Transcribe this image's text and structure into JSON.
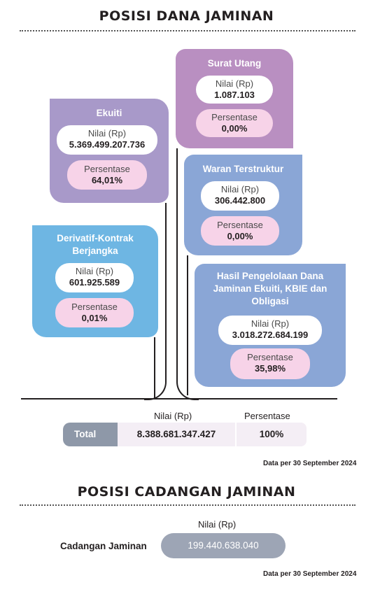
{
  "dana": {
    "title": "POSISI DANA JAMINAN",
    "cards": {
      "ekuiti": {
        "title": "Ekuiti",
        "nilai_label": "Nilai (Rp)",
        "nilai": "5.369.499.207.736",
        "persen_label": "Persentase",
        "persen": "64,01%"
      },
      "surat_utang": {
        "title": "Surat Utang",
        "nilai_label": "Nilai (Rp)",
        "nilai": "1.087.103",
        "persen_label": "Persentase",
        "persen": "0,00%"
      },
      "waran": {
        "title": "Waran Terstruktur",
        "nilai_label": "Nilai (Rp)",
        "nilai": "306.442.800",
        "persen_label": "Persentase",
        "persen": "0,00%"
      },
      "derivatif": {
        "title_line1": "Derivatif-Kontrak",
        "title_line2": "Berjangka",
        "nilai_label": "Nilai (Rp)",
        "nilai": "601.925.589",
        "persen_label": "Persentase",
        "persen": "0,01%"
      },
      "hasil": {
        "title_line1": "Hasil Pengelolaan Dana",
        "title_line2": "Jaminan Ekuiti, KBIE dan",
        "title_line3": "Obligasi",
        "nilai_label": "Nilai (Rp)",
        "nilai": "3.018.272.684.199",
        "persen_label": "Persentase",
        "persen": "35,98%"
      }
    },
    "total": {
      "nilai_header": "Nilai (Rp)",
      "persen_header": "Persentase",
      "label": "Total",
      "nilai": "8.388.681.347.427",
      "persen": "100%"
    },
    "note": "Data per 30 September 2024"
  },
  "cadangan": {
    "title": "POSISI CADANGAN JAMINAN",
    "nilai_header": "Nilai (Rp)",
    "label": "Cadangan Jaminan",
    "nilai": "199.440.638.040",
    "note": "Data per 30 September 2024"
  },
  "colors": {
    "ekuiti": "#a899c9",
    "surat_utang": "#b98fc1",
    "waran": "#8aa6d6",
    "derivatif": "#6eb6e3",
    "hasil": "#8aa6d6",
    "pink": "#f7d3e8",
    "total_label_bg": "#8e98a8",
    "total_value_bg": "#f4eef5",
    "cadangan_bg": "#9da5b5"
  },
  "theme": "light"
}
